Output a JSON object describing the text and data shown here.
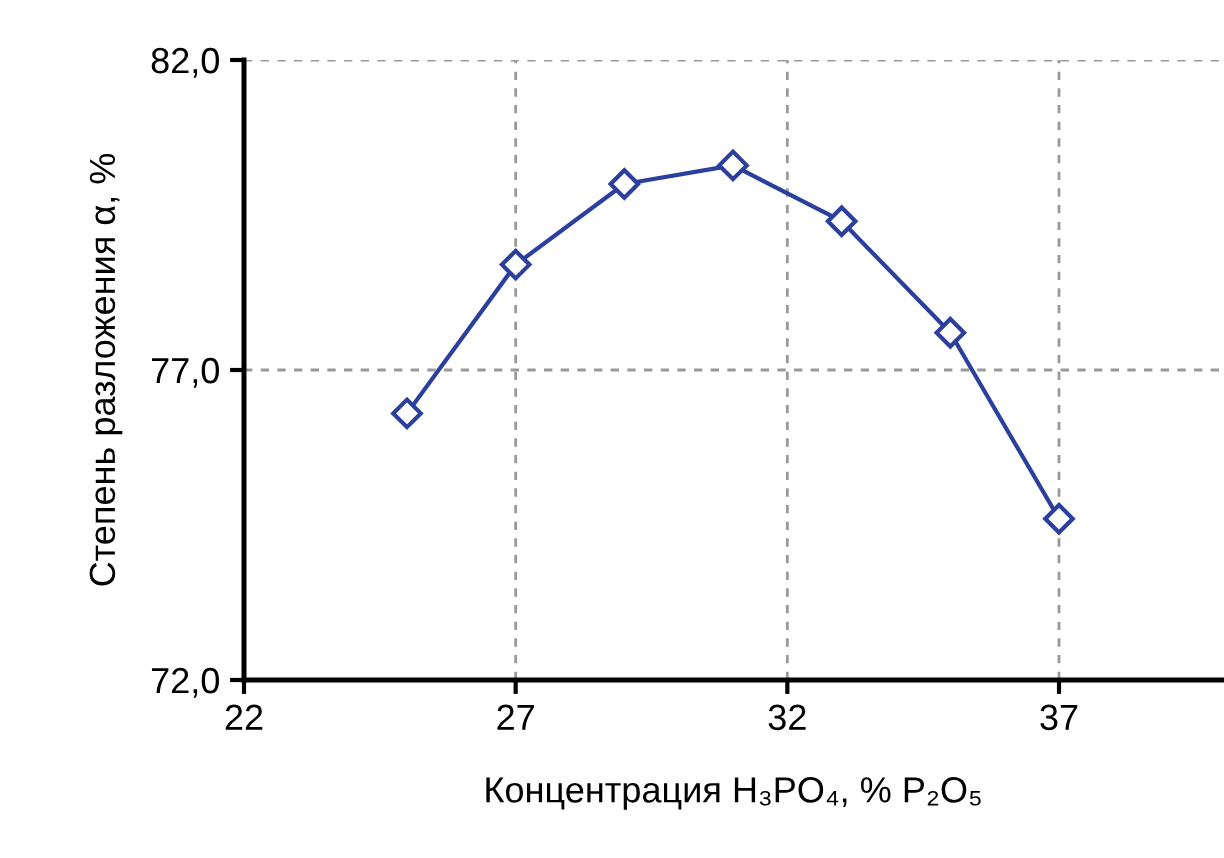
{
  "chart_data": {
    "type": "line",
    "xlabel": "Концентрация H₃PO₄, % P₂O₅",
    "ylabel": "Степень разложения α, %",
    "x": [
      25,
      27,
      29,
      31,
      33,
      35,
      37
    ],
    "series": [
      {
        "color": "#2b3f9e",
        "values": [
          76.3,
          78.7,
          80.0,
          80.3,
          79.4,
          77.6,
          74.6
        ]
      }
    ],
    "xlim": [
      22,
      40
    ],
    "xticks": [
      22,
      27,
      32,
      37
    ],
    "ylim": [
      72,
      82
    ],
    "yticks": [
      {
        "value": 72,
        "label": "72,0"
      },
      {
        "value": 77,
        "label": "77,0"
      },
      {
        "value": 82,
        "label": "82,0"
      }
    ],
    "grid": true,
    "marker": "diamond",
    "line_style": "solid"
  }
}
